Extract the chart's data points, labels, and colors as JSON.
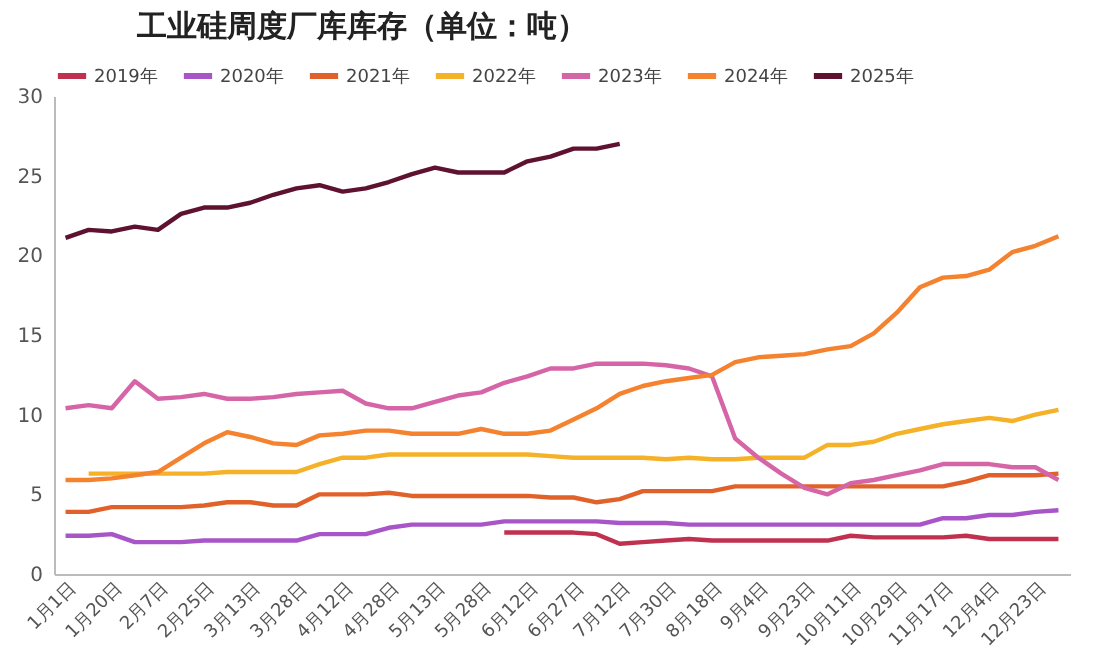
{
  "chart_data": {
    "type": "line",
    "title": "工业硅周度厂库库存（单位：吨）",
    "categories": [
      "1月1日",
      null,
      "1月20日",
      null,
      "2月7日",
      null,
      "2月25日",
      null,
      "3月13日",
      null,
      "3月28日",
      null,
      "4月12日",
      null,
      "4月28日",
      null,
      "5月13日",
      null,
      "5月28日",
      null,
      "6月12日",
      null,
      "6月27日",
      null,
      "7月12日",
      null,
      "7月30日",
      null,
      "8月18日",
      null,
      "9月4日",
      null,
      "9月23日",
      null,
      "10月11日",
      null,
      "10月29日",
      null,
      "11月17日",
      null,
      "12月4日",
      null,
      "12月23日",
      null
    ],
    "series": [
      {
        "name": "2019年",
        "color": "#c0304f",
        "values": [
          null,
          null,
          null,
          null,
          null,
          null,
          null,
          null,
          null,
          null,
          null,
          null,
          null,
          null,
          null,
          null,
          null,
          null,
          null,
          2.6,
          2.6,
          2.6,
          2.6,
          2.5,
          1.9,
          2.0,
          2.1,
          2.2,
          2.1,
          2.1,
          2.1,
          2.1,
          2.1,
          2.1,
          2.4,
          2.3,
          2.3,
          2.3,
          2.3,
          2.4,
          2.2,
          2.2,
          2.2,
          2.2
        ]
      },
      {
        "name": "2020年",
        "color": "#a855c8",
        "values": [
          2.4,
          2.4,
          2.5,
          2.0,
          2.0,
          2.0,
          2.1,
          2.1,
          2.1,
          2.1,
          2.1,
          2.5,
          2.5,
          2.5,
          2.9,
          3.1,
          3.1,
          3.1,
          3.1,
          3.3,
          3.3,
          3.3,
          3.3,
          3.3,
          3.2,
          3.2,
          3.2,
          3.1,
          3.1,
          3.1,
          3.1,
          3.1,
          3.1,
          3.1,
          3.1,
          3.1,
          3.1,
          3.1,
          3.5,
          3.5,
          3.7,
          3.7,
          3.9,
          4.0
        ]
      },
      {
        "name": "2021年",
        "color": "#e0622a",
        "values": [
          3.9,
          3.9,
          4.2,
          4.2,
          4.2,
          4.2,
          4.3,
          4.5,
          4.5,
          4.3,
          4.3,
          5.0,
          5.0,
          5.0,
          5.1,
          4.9,
          4.9,
          4.9,
          4.9,
          4.9,
          4.9,
          4.8,
          4.8,
          4.5,
          4.7,
          5.2,
          5.2,
          5.2,
          5.2,
          5.5,
          5.5,
          5.5,
          5.5,
          5.5,
          5.5,
          5.5,
          5.5,
          5.5,
          5.5,
          5.8,
          6.2,
          6.2,
          6.2,
          6.3
        ]
      },
      {
        "name": "2022年",
        "color": "#f5b127",
        "values": [
          null,
          6.3,
          6.3,
          6.3,
          6.3,
          6.3,
          6.3,
          6.4,
          6.4,
          6.4,
          6.4,
          6.9,
          7.3,
          7.3,
          7.5,
          7.5,
          7.5,
          7.5,
          7.5,
          7.5,
          7.5,
          7.4,
          7.3,
          7.3,
          7.3,
          7.3,
          7.2,
          7.3,
          7.2,
          7.2,
          7.3,
          7.3,
          7.3,
          8.1,
          8.1,
          8.3,
          8.8,
          9.1,
          9.4,
          9.6,
          9.8,
          9.6,
          10.0,
          10.3
        ]
      },
      {
        "name": "2023年",
        "color": "#d565a6",
        "values": [
          10.4,
          10.6,
          10.4,
          12.1,
          11.0,
          11.1,
          11.3,
          11.0,
          11.0,
          11.1,
          11.3,
          11.4,
          11.5,
          10.7,
          10.4,
          10.4,
          10.8,
          11.2,
          11.4,
          12.0,
          12.4,
          12.9,
          12.9,
          13.2,
          13.2,
          13.2,
          13.1,
          12.9,
          12.4,
          8.5,
          7.3,
          6.3,
          5.4,
          5.0,
          5.7,
          5.9,
          6.2,
          6.5,
          6.9,
          6.9,
          6.9,
          6.7,
          6.7,
          5.9
        ]
      },
      {
        "name": "2024年",
        "color": "#f4822e",
        "values": [
          5.9,
          5.9,
          6.0,
          6.2,
          6.4,
          7.3,
          8.2,
          8.9,
          8.6,
          8.2,
          8.1,
          8.7,
          8.8,
          9.0,
          9.0,
          8.8,
          8.8,
          8.8,
          9.1,
          8.8,
          8.8,
          9.0,
          9.7,
          10.4,
          11.3,
          11.8,
          12.1,
          12.3,
          12.5,
          13.3,
          13.6,
          13.7,
          13.8,
          14.1,
          14.3,
          15.1,
          16.4,
          18.0,
          18.6,
          18.7,
          19.1,
          20.2,
          20.6,
          21.2
        ]
      },
      {
        "name": "2025年",
        "color": "#5e1230",
        "values": [
          21.1,
          21.6,
          21.5,
          21.8,
          21.6,
          22.6,
          23.0,
          23.0,
          23.3,
          23.8,
          24.2,
          24.4,
          24.0,
          24.2,
          24.6,
          25.1,
          25.5,
          25.2,
          25.2,
          25.2,
          25.9,
          26.2,
          26.7,
          26.7,
          27.0,
          null,
          null,
          null,
          null,
          null,
          null,
          null,
          null,
          null,
          null,
          null,
          null,
          null,
          null,
          null,
          null,
          null,
          null,
          null
        ]
      }
    ],
    "ylim": [
      0,
      30
    ],
    "yticks": [
      0,
      5,
      10,
      15,
      20,
      25,
      30
    ],
    "grid": false,
    "legend": "top",
    "marker": "none",
    "line_style": "solid"
  }
}
